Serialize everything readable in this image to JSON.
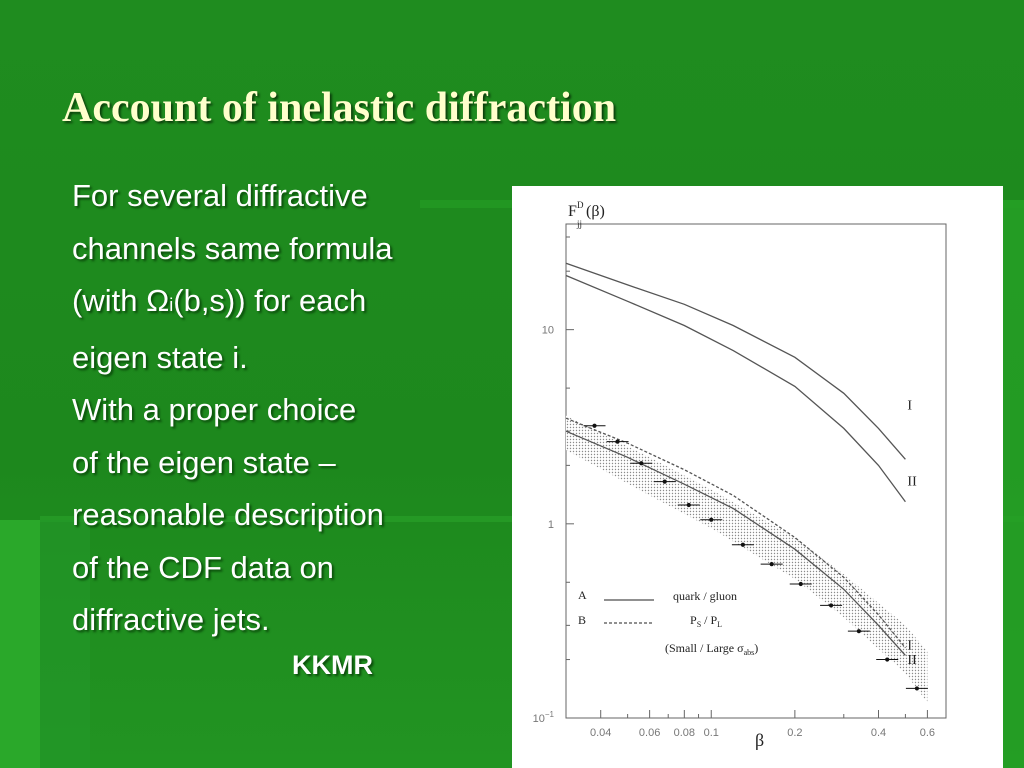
{
  "slide": {
    "title": "Account of inelastic diffraction",
    "body_lines": [
      "For several diffractive",
      "channels same formula",
      "eigen state i.",
      "With a proper choice",
      "of the eigen state –",
      "reasonable description",
      "of the CDF data on",
      "diffractive jets."
    ],
    "omega_line": {
      "pre": "(with Ω",
      "sub": "i",
      "post": "(b,s)) for each"
    },
    "credit": "KKMR"
  },
  "chart_data": {
    "type": "line",
    "ylabel": {
      "main": "F",
      "sup": "D",
      "sub": "jj",
      "arg": "(β)"
    },
    "xlabel": "β",
    "x_scale": "log",
    "y_scale": "log",
    "xlim": [
      0.03,
      0.7
    ],
    "ylim": [
      0.1,
      35
    ],
    "x_ticks": [
      {
        "v": 0.04,
        "label": "0.04"
      },
      {
        "v": 0.06,
        "label": "0.06"
      },
      {
        "v": 0.08,
        "label": "0.08"
      },
      {
        "v": 0.1,
        "label": "0.1"
      },
      {
        "v": 0.2,
        "label": "0.2"
      },
      {
        "v": 0.4,
        "label": "0.4"
      },
      {
        "v": 0.6,
        "label": "0.6"
      }
    ],
    "y_ticks": [
      {
        "v": 10,
        "label": "10"
      },
      {
        "v": 1,
        "label": "1"
      },
      {
        "v": 0.1,
        "label": "10",
        "sup": "−1"
      }
    ],
    "series": [
      {
        "label": "I",
        "style": "solid",
        "x": [
          0.03,
          0.05,
          0.08,
          0.12,
          0.2,
          0.3,
          0.4,
          0.5
        ],
        "y": [
          22,
          17,
          13.5,
          10.5,
          7.2,
          4.7,
          3.1,
          2.15
        ]
      },
      {
        "label": "II",
        "style": "solid",
        "x": [
          0.03,
          0.05,
          0.08,
          0.12,
          0.2,
          0.3,
          0.4,
          0.5
        ],
        "y": [
          19,
          14,
          10.5,
          7.8,
          5.1,
          3.1,
          2.0,
          1.3
        ]
      },
      {
        "label": "I",
        "style": "solid",
        "x": [
          0.03,
          0.05,
          0.08,
          0.12,
          0.2,
          0.3,
          0.4,
          0.5
        ],
        "y": [
          3.0,
          2.2,
          1.6,
          1.2,
          0.74,
          0.46,
          0.3,
          0.21
        ]
      },
      {
        "label": "II",
        "style": "dashed",
        "x": [
          0.03,
          0.05,
          0.08,
          0.12,
          0.2,
          0.3,
          0.4,
          0.5
        ],
        "y": [
          3.5,
          2.6,
          1.9,
          1.4,
          0.85,
          0.53,
          0.34,
          0.23
        ]
      }
    ],
    "band": {
      "x": [
        0.03,
        0.06,
        0.1,
        0.2,
        0.3,
        0.5,
        0.6
      ],
      "upper": [
        3.6,
        2.2,
        1.5,
        0.85,
        0.55,
        0.3,
        0.22
      ],
      "lower": [
        2.4,
        1.4,
        0.95,
        0.52,
        0.33,
        0.17,
        0.12
      ]
    },
    "data_points": [
      {
        "x": 0.038,
        "y": 3.2
      },
      {
        "x": 0.046,
        "y": 2.65
      },
      {
        "x": 0.056,
        "y": 2.05
      },
      {
        "x": 0.068,
        "y": 1.65
      },
      {
        "x": 0.083,
        "y": 1.25
      },
      {
        "x": 0.1,
        "y": 1.05
      },
      {
        "x": 0.13,
        "y": 0.78
      },
      {
        "x": 0.165,
        "y": 0.62
      },
      {
        "x": 0.21,
        "y": 0.49
      },
      {
        "x": 0.27,
        "y": 0.38
      },
      {
        "x": 0.34,
        "y": 0.28
      },
      {
        "x": 0.43,
        "y": 0.2
      },
      {
        "x": 0.55,
        "y": 0.142
      }
    ],
    "legend": {
      "rows": [
        {
          "key": "A",
          "style": "solid",
          "text": "quark / gluon"
        },
        {
          "key": "B",
          "style": "dashed",
          "text_main": "P",
          "text_sub1": "S",
          "text_mid": " / P",
          "text_sub2": "L"
        }
      ],
      "note_pre": "(Small / Large σ",
      "note_sub": "abs",
      "note_post": ")"
    }
  }
}
